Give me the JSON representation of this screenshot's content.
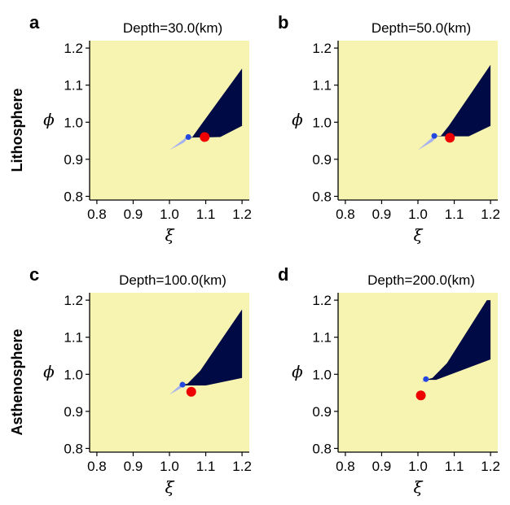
{
  "figure": {
    "row_labels": [
      "Lithosphere",
      "Asthenosphere"
    ],
    "background_color": "#f7f3b0",
    "region_color": "#000a45",
    "light_region_color": "#a6b2ee",
    "small_point_color": "#2447e0",
    "point_color": "#ee0000"
  },
  "chart_data": [
    {
      "panel": "a",
      "type": "area",
      "title": "Depth=30.0(km)",
      "xlabel": "ξ",
      "ylabel": "ϕ",
      "xlim": [
        0.78,
        1.22
      ],
      "ylim": [
        0.79,
        1.22
      ],
      "xticks": [
        "0.8",
        "0.9",
        "1.0",
        "1.1",
        "1.2"
      ],
      "yticks": [
        "0.8",
        "0.9",
        "1.0",
        "1.1",
        "1.2"
      ],
      "dark_region": [
        [
          1.04,
          0.958
        ],
        [
          1.063,
          0.96
        ],
        [
          1.085,
          0.99
        ],
        [
          1.2,
          1.145
        ],
        [
          1.2,
          0.99
        ],
        [
          1.14,
          0.96
        ]
      ],
      "light_region": [
        [
          1.0,
          0.925
        ],
        [
          1.04,
          0.945
        ],
        [
          1.055,
          0.962
        ],
        [
          1.045,
          0.958
        ]
      ],
      "small_point": {
        "x": 1.052,
        "y": 0.96
      },
      "point": {
        "x": 1.097,
        "y": 0.96
      }
    },
    {
      "panel": "b",
      "type": "area",
      "title": "Depth=50.0(km)",
      "xlabel": "ξ",
      "ylabel": "ϕ",
      "xlim": [
        0.78,
        1.22
      ],
      "ylim": [
        0.79,
        1.22
      ],
      "xticks": [
        "0.8",
        "0.9",
        "1.0",
        "1.1",
        "1.2"
      ],
      "yticks": [
        "0.8",
        "0.9",
        "1.0",
        "1.1",
        "1.2"
      ],
      "dark_region": [
        [
          1.04,
          0.962
        ],
        [
          1.063,
          0.963
        ],
        [
          1.085,
          0.99
        ],
        [
          1.2,
          1.155
        ],
        [
          1.2,
          0.99
        ],
        [
          1.14,
          0.962
        ]
      ],
      "light_region": [
        [
          1.0,
          0.925
        ],
        [
          1.04,
          0.948
        ],
        [
          1.055,
          0.965
        ],
        [
          1.043,
          0.962
        ]
      ],
      "small_point": {
        "x": 1.045,
        "y": 0.963
      },
      "point": {
        "x": 1.088,
        "y": 0.958
      }
    },
    {
      "panel": "c",
      "type": "area",
      "title": "Depth=100.0(km)",
      "xlabel": "ξ",
      "ylabel": "ϕ",
      "xlim": [
        0.78,
        1.22
      ],
      "ylim": [
        0.79,
        1.22
      ],
      "xticks": [
        "0.8",
        "0.9",
        "1.0",
        "1.1",
        "1.2"
      ],
      "yticks": [
        "0.8",
        "0.9",
        "1.0",
        "1.1",
        "1.2"
      ],
      "dark_region": [
        [
          1.03,
          0.97
        ],
        [
          1.05,
          0.975
        ],
        [
          1.085,
          1.01
        ],
        [
          1.2,
          1.175
        ],
        [
          1.2,
          0.99
        ],
        [
          1.1,
          0.97
        ]
      ],
      "light_region": [
        [
          1.0,
          0.945
        ],
        [
          1.03,
          0.962
        ],
        [
          1.04,
          0.975
        ],
        [
          1.03,
          0.972
        ]
      ],
      "small_point": {
        "x": 1.036,
        "y": 0.972
      },
      "point": {
        "x": 1.06,
        "y": 0.953
      }
    },
    {
      "panel": "d",
      "type": "area",
      "title": "Depth=200.0(km)",
      "xlabel": "ξ",
      "ylabel": "ϕ",
      "xlim": [
        0.78,
        1.22
      ],
      "ylim": [
        0.79,
        1.22
      ],
      "xticks": [
        "0.8",
        "0.9",
        "1.0",
        "1.1",
        "1.2"
      ],
      "yticks": [
        "0.8",
        "0.9",
        "1.0",
        "1.1",
        "1.2"
      ],
      "dark_region": [
        [
          1.02,
          0.985
        ],
        [
          1.04,
          0.99
        ],
        [
          1.08,
          1.03
        ],
        [
          1.19,
          1.2
        ],
        [
          1.2,
          1.2
        ],
        [
          1.2,
          1.04
        ],
        [
          1.05,
          0.985
        ]
      ],
      "light_region": [
        [
          1.01,
          0.978
        ],
        [
          1.02,
          0.982
        ],
        [
          1.028,
          0.988
        ],
        [
          1.02,
          0.988
        ]
      ],
      "small_point": {
        "x": 1.022,
        "y": 0.987
      },
      "point": {
        "x": 1.008,
        "y": 0.943
      }
    }
  ]
}
